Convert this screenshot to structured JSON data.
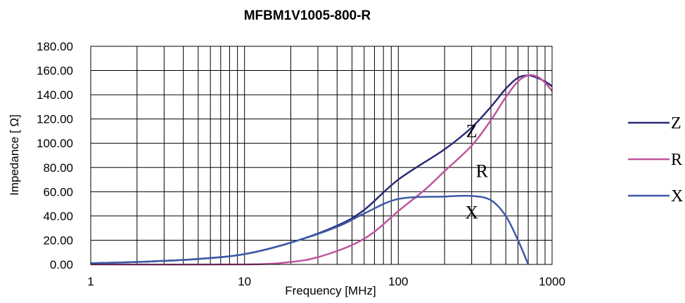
{
  "chart_data": {
    "type": "line",
    "title": "MFBM1V1005-800-R",
    "xlabel": "Frequency [MHz]",
    "ylabel": "Impedance [ Ω]",
    "x_scale": "log",
    "xlim": [
      1,
      1000
    ],
    "ylim": [
      0,
      180
    ],
    "grid": true,
    "legend_position": "right",
    "x_ticks": [
      "1",
      "10",
      "100",
      "1000"
    ],
    "y_ticks": [
      "0.00",
      "20.00",
      "40.00",
      "60.00",
      "80.00",
      "100.00",
      "120.00",
      "140.00",
      "160.00",
      "180.00"
    ],
    "series": [
      {
        "name": "Z",
        "color": "#2a2a7a",
        "points": [
          [
            1,
            1
          ],
          [
            2,
            2
          ],
          [
            5,
            4.5
          ],
          [
            10,
            8.5
          ],
          [
            20,
            18
          ],
          [
            40,
            32
          ],
          [
            60,
            45
          ],
          [
            100,
            70
          ],
          [
            200,
            95
          ],
          [
            300,
            113
          ],
          [
            400,
            130
          ],
          [
            500,
            145
          ],
          [
            600,
            154
          ],
          [
            700,
            156
          ],
          [
            800,
            154
          ],
          [
            900,
            151
          ],
          [
            1000,
            147
          ]
        ]
      },
      {
        "name": "R",
        "color": "#c0549e",
        "points": [
          [
            1,
            0
          ],
          [
            10,
            0
          ],
          [
            20,
            2
          ],
          [
            30,
            6
          ],
          [
            50,
            16
          ],
          [
            70,
            27
          ],
          [
            100,
            44
          ],
          [
            150,
            62
          ],
          [
            200,
            77
          ],
          [
            300,
            98
          ],
          [
            400,
            119
          ],
          [
            500,
            138
          ],
          [
            600,
            151
          ],
          [
            700,
            156
          ],
          [
            800,
            155
          ],
          [
            900,
            150
          ],
          [
            1000,
            143
          ]
        ]
      },
      {
        "name": "X",
        "color": "#3d5aa8",
        "points": [
          [
            1,
            1
          ],
          [
            2,
            2
          ],
          [
            5,
            4.5
          ],
          [
            10,
            8.5
          ],
          [
            20,
            18
          ],
          [
            40,
            31
          ],
          [
            60,
            42
          ],
          [
            100,
            54
          ],
          [
            200,
            56
          ],
          [
            300,
            56.5
          ],
          [
            400,
            53
          ],
          [
            500,
            40
          ],
          [
            600,
            20
          ],
          [
            700,
            0
          ]
        ]
      }
    ],
    "annotations": [
      {
        "text": "Z",
        "x": 300,
        "y": 105
      },
      {
        "text": "R",
        "x": 350,
        "y": 72
      },
      {
        "text": "X",
        "x": 300,
        "y": 38
      }
    ]
  }
}
